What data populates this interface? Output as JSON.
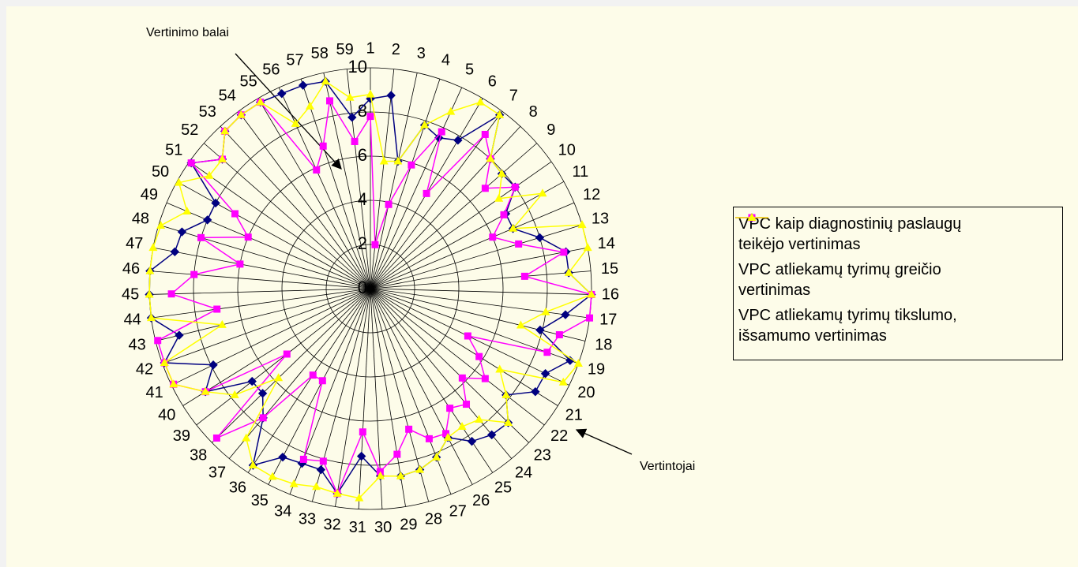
{
  "chart_data": {
    "type": "radar",
    "categories": [
      "1",
      "2",
      "3",
      "4",
      "5",
      "6",
      "7",
      "8",
      "9",
      "10",
      "11",
      "12",
      "13",
      "14",
      "15",
      "16",
      "17",
      "18",
      "19",
      "20",
      "21",
      "22",
      "23",
      "24",
      "25",
      "26",
      "27",
      "28",
      "29",
      "30",
      "31",
      "32",
      "33",
      "34",
      "35",
      "36",
      "37",
      "38",
      "39",
      "40",
      "41",
      "42",
      "43",
      "44",
      "45",
      "46",
      "47",
      "48",
      "49",
      "50",
      "51",
      "52",
      "53",
      "54",
      "55",
      "56",
      "57",
      "58",
      "59"
    ],
    "ylim": [
      0,
      10
    ],
    "yticks": [
      0,
      2,
      4,
      6,
      8,
      10
    ],
    "grid": true,
    "annotations": [
      "Vertinimo balai",
      "Vertintojai"
    ],
    "series": [
      {
        "name": "VPC kaip diagnostinių paslaugų teikėjo vertinimas",
        "color": "#000080",
        "marker": "diamond",
        "values": [
          8.6,
          8.8,
          5.9,
          7.8,
          7.5,
          7.8,
          9.8,
          8,
          7.9,
          8,
          7,
          7,
          8,
          9,
          9,
          10,
          8.9,
          7.9,
          9.6,
          8.8,
          8.8,
          7.8,
          8.7,
          8.6,
          8.3,
          7.6,
          8.2,
          8.5,
          8.6,
          8.5,
          7.6,
          9.4,
          8.5,
          8.5,
          8.6,
          9.6,
          7.6,
          6.8,
          6.8,
          8.8,
          7.9,
          9.9,
          8.9,
          10,
          10,
          10,
          9,
          8.9,
          8,
          8,
          9.9,
          8.9,
          9.7,
          9.8,
          9.8,
          9.7,
          9.7,
          9.6,
          7.8
        ]
      },
      {
        "name": "VPC atliekamų tyrimų greičio vertinimas",
        "color": "#ff00ff",
        "marker": "square",
        "values": [
          7.8,
          2,
          3.9,
          5.9,
          7.8,
          5,
          8.7,
          8,
          6.9,
          8,
          6.9,
          6,
          7,
          8.9,
          7,
          10,
          10,
          8.8,
          8.5,
          4.9,
          5.8,
          6.6,
          5.8,
          6.8,
          6.5,
          7.4,
          7.3,
          6.6,
          7.6,
          8.3,
          6.5,
          9.4,
          8.1,
          8.3,
          4.7,
          4.7,
          7.6,
          9.7,
          4.8,
          8.8,
          9.9,
          9.9,
          9.9,
          7,
          9,
          8,
          6,
          8,
          6,
          7,
          9.9,
          8.9,
          9.7,
          9.8,
          9.8,
          5.9,
          6.8,
          8.7,
          6.7
        ]
      },
      {
        "name": "VPC atliekamų tyrimų tikslumo, išsamumo vertinimas",
        "color": "#ffff00",
        "marker": "triangle",
        "values": [
          8.8,
          5.8,
          5.9,
          7.8,
          8.8,
          9.8,
          9.8,
          8,
          7.9,
          7.1,
          8.9,
          7,
          10,
          10,
          9,
          10,
          8,
          7,
          10,
          9.7,
          6.9,
          7.8,
          8.7,
          7.7,
          7.5,
          7.6,
          8.2,
          8.5,
          8.6,
          8.5,
          9.5,
          9.4,
          9.3,
          9.5,
          9.6,
          9.6,
          8.8,
          5.8,
          7.8,
          8.8,
          9.9,
          9.9,
          6.9,
          10,
          10,
          10,
          10,
          9.9,
          9,
          9.9,
          8.9,
          8.9,
          9.7,
          9.8,
          9.8,
          8.2,
          8.7,
          9.6,
          8.7
        ]
      }
    ]
  }
}
